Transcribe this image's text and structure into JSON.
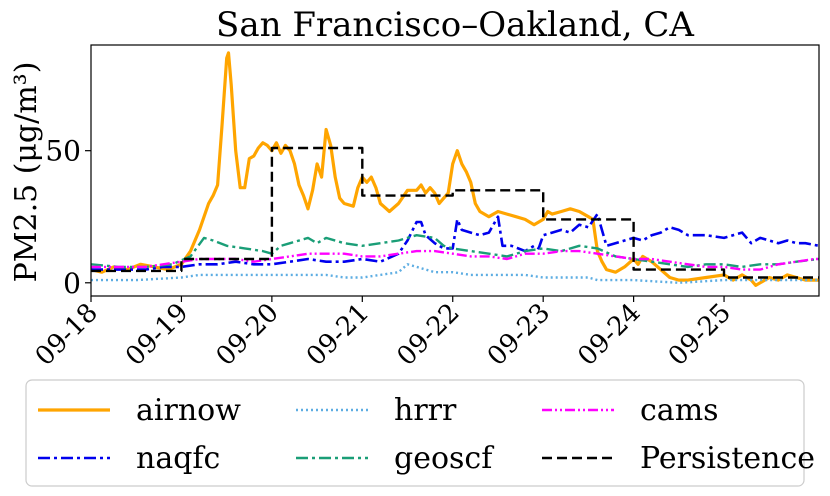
{
  "chart_data": {
    "type": "line",
    "title": "San Francisco–Oakland, CA",
    "xlabel": "",
    "ylabel": "PM2.5 (μg/m³)",
    "x_ticks": [
      "09-18",
      "09-19",
      "09-20",
      "09-21",
      "09-22",
      "09-23",
      "09-24",
      "09-25"
    ],
    "y_ticks": [
      0,
      50
    ],
    "xlim": [
      0,
      8.05
    ],
    "ylim": [
      -5,
      90
    ],
    "grid": false,
    "legend_position": "bottom",
    "series": [
      {
        "name": "airnow",
        "color": "#FFA500",
        "dash": "solid",
        "width": 3.2,
        "points": [
          [
            0,
            5
          ],
          [
            0.12,
            4
          ],
          [
            0.25,
            6
          ],
          [
            0.4,
            5
          ],
          [
            0.55,
            7
          ],
          [
            0.7,
            6
          ],
          [
            0.85,
            5
          ],
          [
            1.0,
            7
          ],
          [
            1.1,
            12
          ],
          [
            1.2,
            20
          ],
          [
            1.3,
            30
          ],
          [
            1.35,
            33
          ],
          [
            1.4,
            37
          ],
          [
            1.45,
            60
          ],
          [
            1.5,
            85
          ],
          [
            1.52,
            87
          ],
          [
            1.55,
            75
          ],
          [
            1.6,
            50
          ],
          [
            1.65,
            36
          ],
          [
            1.7,
            36
          ],
          [
            1.75,
            47
          ],
          [
            1.8,
            48
          ],
          [
            1.85,
            51
          ],
          [
            1.9,
            53
          ],
          [
            1.95,
            52
          ],
          [
            2.0,
            50
          ],
          [
            2.05,
            53
          ],
          [
            2.1,
            49
          ],
          [
            2.15,
            52
          ],
          [
            2.2,
            50
          ],
          [
            2.25,
            45
          ],
          [
            2.3,
            37
          ],
          [
            2.35,
            33
          ],
          [
            2.4,
            28
          ],
          [
            2.45,
            35
          ],
          [
            2.5,
            45
          ],
          [
            2.55,
            40
          ],
          [
            2.6,
            58
          ],
          [
            2.65,
            52
          ],
          [
            2.7,
            40
          ],
          [
            2.75,
            32
          ],
          [
            2.8,
            30
          ],
          [
            2.9,
            29
          ],
          [
            2.95,
            36
          ],
          [
            3.0,
            40
          ],
          [
            3.05,
            38
          ],
          [
            3.1,
            40
          ],
          [
            3.15,
            36
          ],
          [
            3.2,
            30
          ],
          [
            3.3,
            27
          ],
          [
            3.4,
            30
          ],
          [
            3.5,
            35
          ],
          [
            3.6,
            35
          ],
          [
            3.65,
            37
          ],
          [
            3.7,
            34
          ],
          [
            3.75,
            36
          ],
          [
            3.8,
            34
          ],
          [
            3.85,
            30
          ],
          [
            3.9,
            32
          ],
          [
            3.95,
            34
          ],
          [
            4.0,
            45
          ],
          [
            4.05,
            50
          ],
          [
            4.1,
            45
          ],
          [
            4.15,
            42
          ],
          [
            4.2,
            38
          ],
          [
            4.25,
            30
          ],
          [
            4.3,
            27
          ],
          [
            4.35,
            26
          ],
          [
            4.4,
            25
          ],
          [
            4.5,
            27
          ],
          [
            4.6,
            26
          ],
          [
            4.7,
            25
          ],
          [
            4.8,
            24
          ],
          [
            4.9,
            22
          ],
          [
            5.0,
            24
          ],
          [
            5.05,
            27
          ],
          [
            5.1,
            26
          ],
          [
            5.2,
            27
          ],
          [
            5.3,
            28
          ],
          [
            5.4,
            27
          ],
          [
            5.5,
            25
          ],
          [
            5.55,
            24
          ],
          [
            5.6,
            12
          ],
          [
            5.65,
            8
          ],
          [
            5.7,
            5
          ],
          [
            5.8,
            4
          ],
          [
            5.9,
            6
          ],
          [
            6.0,
            9
          ],
          [
            6.05,
            7
          ],
          [
            6.1,
            10
          ],
          [
            6.2,
            8
          ],
          [
            6.3,
            5
          ],
          [
            6.4,
            2
          ],
          [
            6.5,
            1
          ],
          [
            6.6,
            1
          ],
          [
            6.8,
            2
          ],
          [
            7.0,
            3
          ],
          [
            7.1,
            1
          ],
          [
            7.2,
            3
          ],
          [
            7.3,
            1
          ],
          [
            7.35,
            -1
          ],
          [
            7.4,
            0
          ],
          [
            7.5,
            2
          ],
          [
            7.6,
            1
          ],
          [
            7.7,
            3
          ],
          [
            7.8,
            2
          ],
          [
            7.9,
            1
          ],
          [
            8.05,
            1
          ]
        ]
      },
      {
        "name": "naqfc",
        "color": "#0000EE",
        "dash": "dashdot",
        "width": 2.6,
        "points": [
          [
            0,
            5
          ],
          [
            0.3,
            5
          ],
          [
            0.6,
            5
          ],
          [
            0.8,
            6
          ],
          [
            1.0,
            6
          ],
          [
            1.2,
            7
          ],
          [
            1.4,
            7
          ],
          [
            1.6,
            8
          ],
          [
            1.8,
            7
          ],
          [
            2.0,
            7
          ],
          [
            2.2,
            8
          ],
          [
            2.4,
            9
          ],
          [
            2.6,
            8
          ],
          [
            2.8,
            8
          ],
          [
            3.0,
            9
          ],
          [
            3.2,
            8
          ],
          [
            3.4,
            11
          ],
          [
            3.5,
            16
          ],
          [
            3.6,
            23
          ],
          [
            3.65,
            23
          ],
          [
            3.7,
            18
          ],
          [
            3.8,
            15
          ],
          [
            3.9,
            13
          ],
          [
            4.0,
            13
          ],
          [
            4.05,
            24
          ],
          [
            4.1,
            20
          ],
          [
            4.2,
            19
          ],
          [
            4.3,
            18
          ],
          [
            4.4,
            19
          ],
          [
            4.5,
            25
          ],
          [
            4.55,
            14
          ],
          [
            4.65,
            14
          ],
          [
            4.8,
            12
          ],
          [
            4.9,
            14
          ],
          [
            4.95,
            13
          ],
          [
            5.0,
            18
          ],
          [
            5.1,
            19
          ],
          [
            5.2,
            20
          ],
          [
            5.3,
            19
          ],
          [
            5.4,
            22
          ],
          [
            5.5,
            21
          ],
          [
            5.6,
            26
          ],
          [
            5.7,
            14
          ],
          [
            5.9,
            16
          ],
          [
            6.0,
            17
          ],
          [
            6.1,
            16
          ],
          [
            6.2,
            18
          ],
          [
            6.3,
            19
          ],
          [
            6.4,
            21
          ],
          [
            6.5,
            20
          ],
          [
            6.6,
            18
          ],
          [
            6.8,
            18
          ],
          [
            7.0,
            17
          ],
          [
            7.1,
            18
          ],
          [
            7.2,
            19
          ],
          [
            7.3,
            15
          ],
          [
            7.4,
            17
          ],
          [
            7.5,
            16
          ],
          [
            7.6,
            15
          ],
          [
            7.7,
            16
          ],
          [
            7.8,
            15
          ],
          [
            7.9,
            15
          ],
          [
            8.05,
            14
          ]
        ]
      },
      {
        "name": "hrrr",
        "color": "#5DADE2",
        "dash": "dotted",
        "width": 2.4,
        "points": [
          [
            0,
            1
          ],
          [
            0.5,
            1
          ],
          [
            1.0,
            2
          ],
          [
            1.2,
            3
          ],
          [
            1.4,
            3
          ],
          [
            1.6,
            3
          ],
          [
            2.0,
            3
          ],
          [
            2.4,
            3
          ],
          [
            2.6,
            3
          ],
          [
            2.8,
            2
          ],
          [
            3.0,
            2
          ],
          [
            3.2,
            3
          ],
          [
            3.4,
            4
          ],
          [
            3.5,
            7
          ],
          [
            3.6,
            6
          ],
          [
            3.8,
            4
          ],
          [
            4.0,
            4
          ],
          [
            4.2,
            3
          ],
          [
            4.5,
            3
          ],
          [
            4.8,
            3
          ],
          [
            5.0,
            2
          ],
          [
            5.5,
            2
          ],
          [
            5.6,
            1
          ],
          [
            6.0,
            1
          ],
          [
            6.5,
            0
          ],
          [
            7.0,
            1
          ],
          [
            7.5,
            1
          ],
          [
            8.05,
            1
          ]
        ]
      },
      {
        "name": "geoscf",
        "color": "#1A9E77",
        "dash": "dashdot",
        "width": 2.4,
        "points": [
          [
            0,
            7
          ],
          [
            0.3,
            6
          ],
          [
            0.6,
            6
          ],
          [
            0.9,
            7
          ],
          [
            1.1,
            10
          ],
          [
            1.25,
            17
          ],
          [
            1.35,
            16
          ],
          [
            1.5,
            14
          ],
          [
            1.7,
            13
          ],
          [
            1.9,
            12
          ],
          [
            2.0,
            11
          ],
          [
            2.1,
            14
          ],
          [
            2.2,
            15
          ],
          [
            2.4,
            17
          ],
          [
            2.5,
            15
          ],
          [
            2.6,
            17
          ],
          [
            2.8,
            15
          ],
          [
            3.0,
            14
          ],
          [
            3.2,
            15
          ],
          [
            3.4,
            16
          ],
          [
            3.6,
            18
          ],
          [
            3.8,
            17
          ],
          [
            3.9,
            14
          ],
          [
            4.0,
            13
          ],
          [
            4.2,
            12
          ],
          [
            4.4,
            11
          ],
          [
            4.6,
            10
          ],
          [
            4.8,
            12
          ],
          [
            5.0,
            13
          ],
          [
            5.2,
            12
          ],
          [
            5.4,
            14
          ],
          [
            5.6,
            13
          ],
          [
            5.8,
            10
          ],
          [
            6.0,
            9
          ],
          [
            6.2,
            8
          ],
          [
            6.4,
            7
          ],
          [
            6.6,
            6
          ],
          [
            6.8,
            7
          ],
          [
            7.0,
            7
          ],
          [
            7.2,
            6
          ],
          [
            7.4,
            7
          ],
          [
            7.6,
            7
          ],
          [
            7.8,
            8
          ],
          [
            8.05,
            9
          ]
        ]
      },
      {
        "name": "cams",
        "color": "#FF00FF",
        "dash": "dashdotdot",
        "width": 2.4,
        "points": [
          [
            0,
            6
          ],
          [
            0.3,
            6
          ],
          [
            0.6,
            6
          ],
          [
            0.8,
            7
          ],
          [
            1.0,
            8
          ],
          [
            1.2,
            9
          ],
          [
            1.4,
            9
          ],
          [
            1.6,
            9
          ],
          [
            1.8,
            8
          ],
          [
            2.0,
            9
          ],
          [
            2.2,
            10
          ],
          [
            2.4,
            11
          ],
          [
            2.6,
            11
          ],
          [
            2.8,
            11
          ],
          [
            3.0,
            10
          ],
          [
            3.2,
            10
          ],
          [
            3.4,
            11
          ],
          [
            3.6,
            12
          ],
          [
            3.8,
            12
          ],
          [
            4.0,
            11
          ],
          [
            4.2,
            10
          ],
          [
            4.4,
            10
          ],
          [
            4.6,
            9
          ],
          [
            4.8,
            11
          ],
          [
            5.0,
            11
          ],
          [
            5.2,
            12
          ],
          [
            5.4,
            12
          ],
          [
            5.6,
            11
          ],
          [
            5.8,
            10
          ],
          [
            6.0,
            9
          ],
          [
            6.2,
            9
          ],
          [
            6.4,
            8
          ],
          [
            6.6,
            7
          ],
          [
            6.8,
            6
          ],
          [
            7.0,
            6
          ],
          [
            7.2,
            5
          ],
          [
            7.4,
            5
          ],
          [
            7.6,
            7
          ],
          [
            7.8,
            8
          ],
          [
            8.0,
            9
          ],
          [
            8.05,
            9
          ]
        ]
      },
      {
        "name": "Persistence",
        "color": "#000000",
        "dash": "dashed",
        "width": 2.4,
        "points": [
          [
            0,
            4.5
          ],
          [
            1.0,
            4.5
          ],
          [
            1.0,
            9
          ],
          [
            2.0,
            9
          ],
          [
            2.0,
            51
          ],
          [
            3.0,
            51
          ],
          [
            3.0,
            33
          ],
          [
            4.0,
            33
          ],
          [
            4.0,
            35
          ],
          [
            5.0,
            35
          ],
          [
            5.0,
            24
          ],
          [
            6.0,
            24
          ],
          [
            6.0,
            5
          ],
          [
            7.0,
            5
          ],
          [
            7.0,
            2
          ],
          [
            8.05,
            2
          ]
        ]
      }
    ]
  }
}
